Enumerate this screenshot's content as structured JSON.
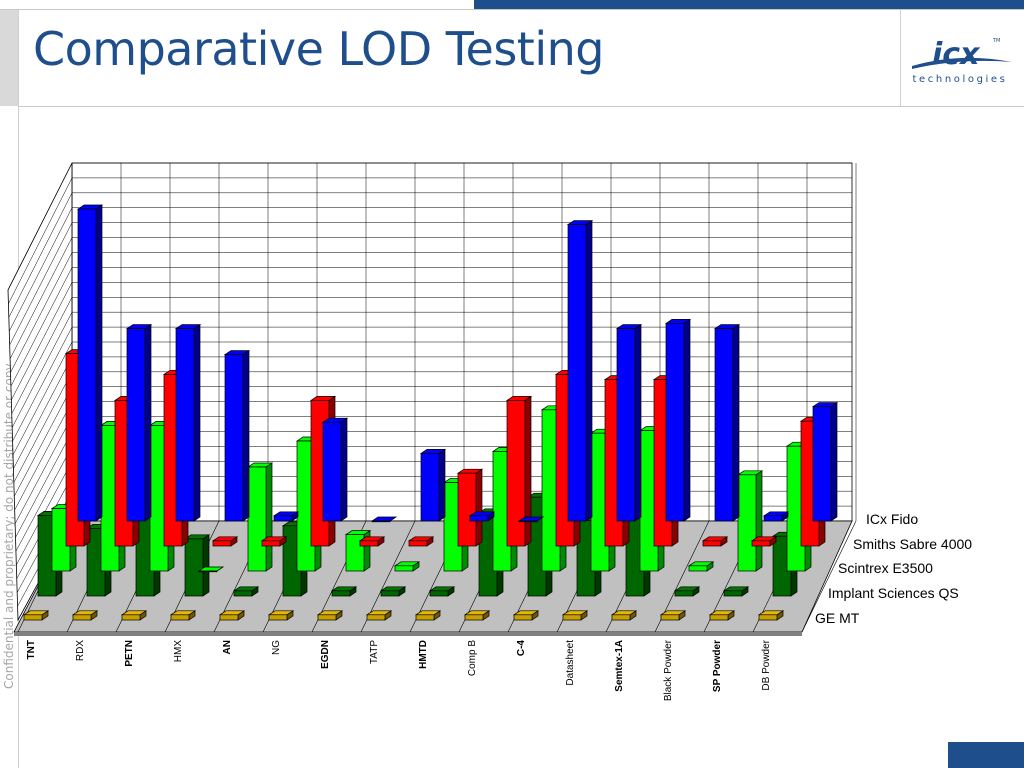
{
  "slide": {
    "title": "Comparative LOD Testing",
    "confidential_text": "Confidential and proprietary; do not distribute or copy",
    "logo": {
      "name": "icx",
      "tm": "TM",
      "subtitle": "technologies"
    }
  },
  "colors": {
    "accent": "#1f4e8c"
  },
  "chart_data": {
    "type": "bar",
    "subtype": "3d-clustered-column",
    "categories": [
      "TNT",
      "RDX",
      "PETN",
      "HMX",
      "AN",
      "NG",
      "EGDN",
      "TATP",
      "HMTD",
      "Comp B",
      "C-4",
      "Datasheet",
      "Semtex-1A",
      "Black Powder",
      "SP Powder",
      "DB Powder"
    ],
    "legend_position": "right (depth axis labels)",
    "grid": true,
    "series": [
      {
        "name": "ICx Fido",
        "color": "#0000ff",
        "values": [
          12,
          7.4,
          7.4,
          6.4,
          0.2,
          3.8,
          0,
          2.6,
          0.2,
          0,
          11.4,
          7.4,
          7.6,
          7.4,
          0.2,
          4.4
        ]
      },
      {
        "name": "Smiths Sabre 4000",
        "color": "#ff0000",
        "values": [
          7.4,
          5.6,
          6.6,
          0.2,
          0.2,
          5.6,
          0.2,
          0.2,
          2.8,
          5.6,
          6.6,
          6.4,
          6.4,
          0.2,
          0.2,
          4.8
        ]
      },
      {
        "name": "Scintrex E3500",
        "color": "#00ff00",
        "values": [
          2.4,
          5.6,
          5.6,
          0,
          4.0,
          5.0,
          1.4,
          0.2,
          3.4,
          4.6,
          6.2,
          5.3,
          5.4,
          0.2,
          3.7,
          4.8
        ]
      },
      {
        "name": "Implant Sciences QS",
        "color": "#006600",
        "values": [
          3.1,
          2.6,
          3.2,
          2.2,
          0.2,
          2.7,
          0.2,
          0.2,
          0.2,
          3.2,
          3.8,
          2.9,
          3.3,
          0.2,
          0.2,
          2.3
        ]
      },
      {
        "name": "GE MT",
        "color": "#c8a000",
        "values": [
          0.2,
          0.2,
          0.2,
          0.2,
          0.2,
          0.2,
          0.2,
          0.2,
          0.2,
          0.2,
          0.2,
          0.2,
          0.2,
          0.2,
          0.2,
          0.2
        ]
      }
    ]
  }
}
